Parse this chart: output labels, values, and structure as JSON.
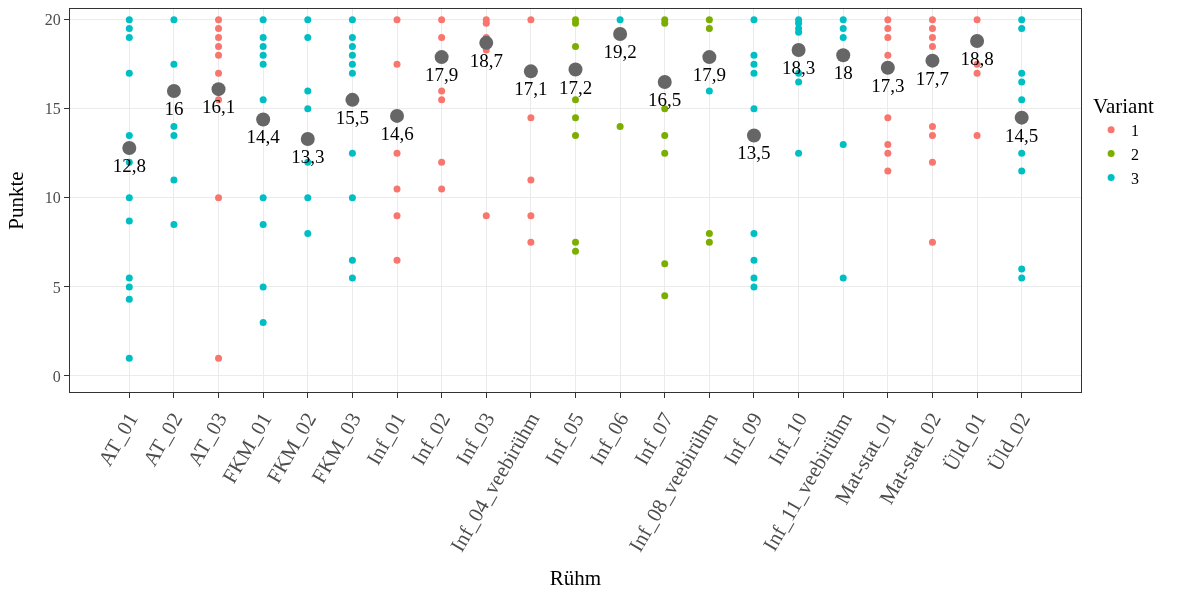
{
  "chart_data": {
    "type": "scatter",
    "xlabel": "Rühm",
    "ylabel": "Punkte",
    "legend_title": "Variant",
    "legend": "right",
    "grid": true,
    "categories": [
      "AT_01",
      "AT_02",
      "AT_03",
      "FKM_01",
      "FKM_02",
      "FKM_03",
      "Inf_01",
      "Inf_02",
      "Inf_03",
      "Inf_04_veebirühm",
      "Inf_05",
      "Inf_06",
      "Inf_07",
      "Inf_08_veebirühm",
      "Inf_09",
      "Inf_10",
      "Inf_11_veebirühm",
      "Mat-stat_01",
      "Mat-stat_02",
      "Üld_01",
      "Üld_02"
    ],
    "ylim": [
      -0.9,
      20.6
    ],
    "yticks": [
      0,
      5,
      10,
      15,
      20
    ],
    "series": [
      {
        "name": "1",
        "color": "#f8766d",
        "x": [
          "AT_03",
          "AT_03",
          "AT_03",
          "AT_03",
          "AT_03",
          "AT_03",
          "AT_03",
          "AT_03",
          "AT_03",
          "Inf_01",
          "Inf_01",
          "Inf_01",
          "Inf_01",
          "Inf_01",
          "Inf_01",
          "Inf_02",
          "Inf_02",
          "Inf_02",
          "Inf_02",
          "Inf_02",
          "Inf_02",
          "Inf_03",
          "Inf_03",
          "Inf_03",
          "Inf_03",
          "Inf_03",
          "Inf_04_veebirühm",
          "Inf_04_veebirühm",
          "Inf_04_veebirühm",
          "Inf_04_veebirühm",
          "Inf_04_veebirühm",
          "Mat-stat_01",
          "Mat-stat_01",
          "Mat-stat_01",
          "Mat-stat_01",
          "Mat-stat_01",
          "Mat-stat_01",
          "Mat-stat_01",
          "Mat-stat_01",
          "Mat-stat_02",
          "Mat-stat_02",
          "Mat-stat_02",
          "Mat-stat_02",
          "Mat-stat_02",
          "Mat-stat_02",
          "Mat-stat_02",
          "Mat-stat_02",
          "Üld_01",
          "Üld_01",
          "Üld_01",
          "Üld_01"
        ],
        "values": [
          20,
          19.5,
          19,
          18.5,
          18,
          17,
          15.5,
          10,
          1,
          20,
          17.5,
          12.5,
          10.5,
          9,
          6.5,
          20,
          19,
          16,
          15.5,
          12,
          10.5,
          20,
          19.8,
          19,
          18.3,
          9,
          20,
          14.5,
          11,
          9,
          7.5,
          20,
          19.5,
          19,
          18,
          14.5,
          13,
          12.5,
          11.5,
          20,
          19.5,
          19,
          18.5,
          14,
          13.5,
          12,
          7.5,
          20,
          17.5,
          17,
          13.5
        ]
      },
      {
        "name": "2",
        "color": "#7cae00",
        "x": [
          "Inf_05",
          "Inf_05",
          "Inf_05",
          "Inf_05",
          "Inf_05",
          "Inf_05",
          "Inf_05",
          "Inf_05",
          "Inf_06",
          "Inf_07",
          "Inf_07",
          "Inf_07",
          "Inf_07",
          "Inf_07",
          "Inf_07",
          "Inf_07",
          "Inf_08_veebirühm",
          "Inf_08_veebirühm",
          "Inf_08_veebirühm",
          "Inf_08_veebirühm"
        ],
        "values": [
          20,
          19.8,
          18.5,
          15.5,
          14.5,
          13.5,
          7.5,
          7,
          14,
          20,
          19.8,
          15,
          13.5,
          12.5,
          6.3,
          4.5,
          20,
          19.5,
          8,
          7.5
        ]
      },
      {
        "name": "3",
        "color": "#00bfc4",
        "x": [
          "AT_01",
          "AT_01",
          "AT_01",
          "AT_01",
          "AT_01",
          "AT_01",
          "AT_01",
          "AT_01",
          "AT_01",
          "AT_01",
          "AT_01",
          "AT_01",
          "AT_02",
          "AT_02",
          "AT_02",
          "AT_02",
          "AT_02",
          "AT_02",
          "FKM_01",
          "FKM_01",
          "FKM_01",
          "FKM_01",
          "FKM_01",
          "FKM_01",
          "FKM_01",
          "FKM_01",
          "FKM_01",
          "FKM_01",
          "FKM_02",
          "FKM_02",
          "FKM_02",
          "FKM_02",
          "FKM_02",
          "FKM_02",
          "FKM_02",
          "FKM_03",
          "FKM_03",
          "FKM_03",
          "FKM_03",
          "FKM_03",
          "FKM_03",
          "FKM_03",
          "FKM_03",
          "FKM_03",
          "FKM_03",
          "Inf_06",
          "Inf_08_veebirühm",
          "Inf_09",
          "Inf_09",
          "Inf_09",
          "Inf_09",
          "Inf_09",
          "Inf_09",
          "Inf_09",
          "Inf_09",
          "Inf_09",
          "Inf_10",
          "Inf_10",
          "Inf_10",
          "Inf_10",
          "Inf_10",
          "Inf_10",
          "Inf_10",
          "Inf_11_veebirühm",
          "Inf_11_veebirühm",
          "Inf_11_veebirühm",
          "Inf_11_veebirühm",
          "Inf_11_veebirühm",
          "Üld_02",
          "Üld_02",
          "Üld_02",
          "Üld_02",
          "Üld_02",
          "Üld_02",
          "Üld_02",
          "Üld_02",
          "Üld_02"
        ],
        "values": [
          20,
          19.5,
          19,
          17,
          13.5,
          12,
          10,
          8.7,
          5.5,
          5,
          4.3,
          1,
          20,
          17.5,
          14,
          13.5,
          11,
          8.5,
          20,
          19,
          18.5,
          18,
          17.5,
          15.5,
          10,
          8.5,
          5,
          3,
          20,
          19,
          16,
          15,
          12,
          10,
          8,
          20,
          19,
          18.5,
          18,
          17.5,
          17,
          12.5,
          10,
          6.5,
          5.5,
          20,
          16,
          20,
          18,
          17.5,
          17,
          15,
          8,
          6.5,
          5.5,
          5,
          20,
          19.8,
          19.5,
          19.3,
          17,
          16.5,
          12.5,
          20,
          19.5,
          19,
          13,
          5.5,
          20,
          19.5,
          17,
          16.5,
          15.5,
          12.5,
          11.5,
          6,
          5.5
        ]
      },
      {
        "color": "#666666",
        "x": [
          "AT_01",
          "AT_02",
          "AT_03",
          "FKM_01",
          "FKM_02",
          "FKM_03",
          "Inf_01",
          "Inf_02",
          "Inf_03",
          "Inf_04_veebirühm",
          "Inf_05",
          "Inf_06",
          "Inf_07",
          "Inf_08_veebirühm",
          "Inf_09",
          "Inf_10",
          "Inf_11_veebirühm",
          "Mat-stat_01",
          "Mat-stat_02",
          "Üld_01",
          "Üld_02"
        ],
        "values": [
          12.8,
          16,
          16.1,
          14.4,
          13.3,
          15.5,
          14.6,
          17.9,
          18.7,
          17.1,
          17.2,
          19.2,
          16.5,
          17.9,
          13.5,
          18.3,
          18,
          17.3,
          17.7,
          18.8,
          14.5
        ],
        "value_labels": [
          "12,8",
          "16",
          "16,1",
          "14,4",
          "13,3",
          "15,5",
          "14,6",
          "17,9",
          "18,7",
          "17,1",
          "17,2",
          "19,2",
          "16,5",
          "17,9",
          "13,5",
          "18,3",
          "18",
          "17,3",
          "17,7",
          "18,8",
          "14,5"
        ]
      }
    ]
  }
}
